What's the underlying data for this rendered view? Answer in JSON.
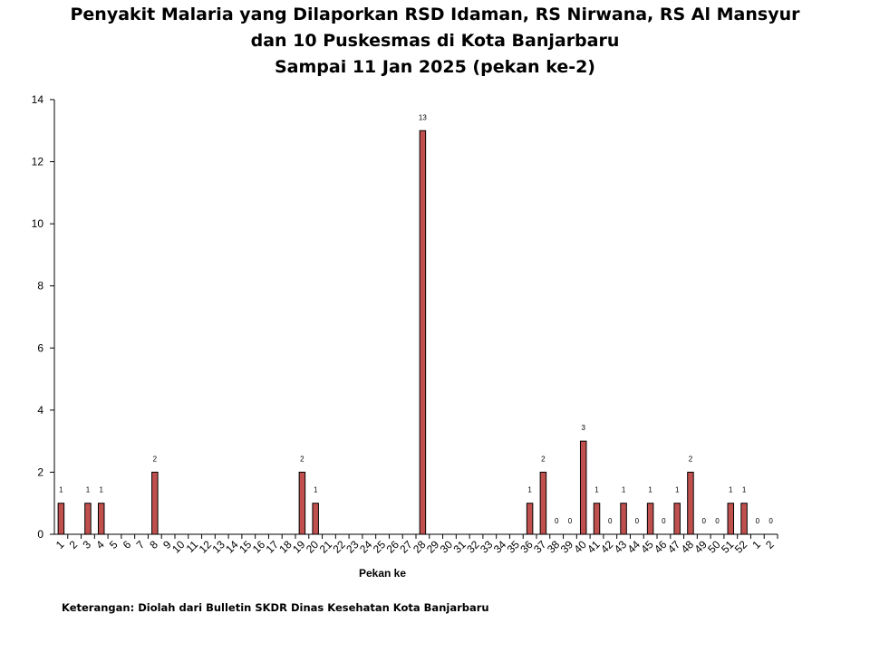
{
  "chart_data": {
    "type": "bar",
    "title_lines": [
      "Penyakit Malaria yang Dilaporkan RSD Idaman, RS Nirwana, RS Al Mansyur",
      "dan 10 Puskesmas di Kota Banjarbaru",
      "Sampai 11 Jan 2025 (pekan ke-2)"
    ],
    "xlabel": "Pekan ke",
    "ylabel": "",
    "ylim": [
      0,
      14
    ],
    "yticks": [
      0,
      2,
      4,
      6,
      8,
      10,
      12,
      14
    ],
    "grid": false,
    "bar_color": "#c0504d",
    "categories": [
      "1",
      "2",
      "3",
      "4",
      "5",
      "6",
      "7",
      "8",
      "9",
      "10",
      "11",
      "12",
      "13",
      "14",
      "15",
      "16",
      "17",
      "18",
      "19",
      "20",
      "21",
      "22",
      "23",
      "24",
      "25",
      "26",
      "27",
      "28",
      "29",
      "30",
      "31",
      "32",
      "33",
      "34",
      "35",
      "36",
      "37",
      "38",
      "39",
      "40",
      "41",
      "42",
      "43",
      "44",
      "45",
      "46",
      "47",
      "48",
      "49",
      "50",
      "51",
      "52",
      "1",
      "2"
    ],
    "values": [
      1,
      null,
      1,
      1,
      null,
      null,
      null,
      2,
      null,
      null,
      null,
      null,
      null,
      null,
      null,
      null,
      null,
      null,
      2,
      1,
      null,
      null,
      null,
      null,
      null,
      null,
      null,
      13,
      null,
      null,
      null,
      null,
      null,
      null,
      null,
      1,
      2,
      0,
      0,
      3,
      1,
      0,
      1,
      0,
      1,
      0,
      1,
      2,
      0,
      0,
      1,
      1,
      0,
      0
    ],
    "data_labels": [
      "1",
      "",
      "1",
      "1",
      "",
      "",
      "",
      "2",
      "",
      "",
      "",
      "",
      "",
      "",
      "",
      "",
      "",
      "",
      "2",
      "1",
      "",
      "",
      "",
      "",
      "",
      "",
      "",
      "13",
      "",
      "",
      "",
      "",
      "",
      "",
      "",
      "1",
      "2",
      "0",
      "0",
      "3",
      "1",
      "0",
      "1",
      "0",
      "1",
      "0",
      "1",
      "2",
      "0",
      "0",
      "1",
      "1",
      "0",
      "0"
    ]
  },
  "note": "Keterangan: Diolah dari Bulletin SKDR Dinas Kesehatan Kota Banjarbaru"
}
